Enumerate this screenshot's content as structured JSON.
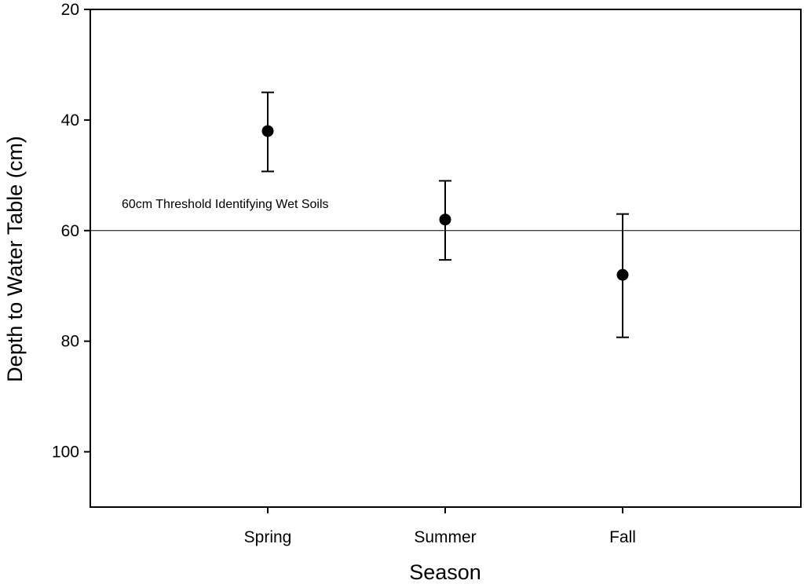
{
  "chart_data": {
    "type": "scatter",
    "title": "",
    "xlabel": "Season",
    "ylabel": "Depth to Water Table (cm)",
    "categories": [
      "Spring",
      "Summer",
      "Fall"
    ],
    "series": [
      {
        "values": [
          42,
          58,
          68
        ],
        "error_low": [
          49.3,
          65.3,
          79.3
        ],
        "error_high": [
          35,
          51,
          57
        ]
      }
    ],
    "ylim": [
      20,
      110
    ],
    "y_inverted": true,
    "yticks": [
      20,
      40,
      60,
      80,
      100
    ],
    "reference_line": {
      "value": 60,
      "label": "60cm Threshold Identifying Wet Soils"
    },
    "grid": false,
    "legend": "none"
  }
}
